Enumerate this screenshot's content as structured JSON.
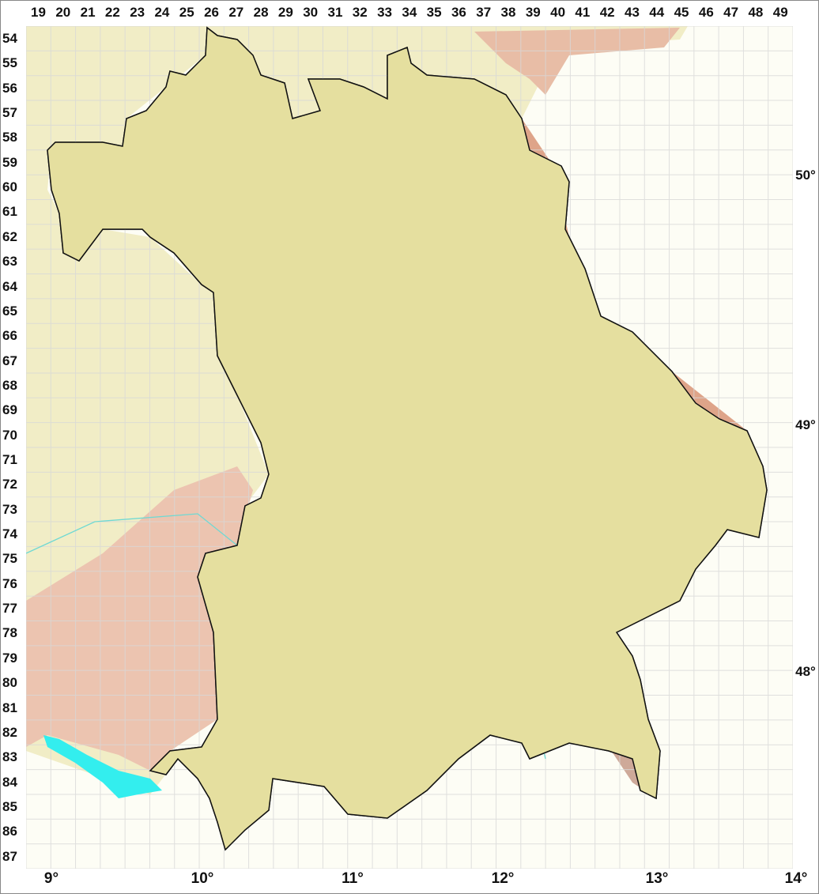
{
  "grid": {
    "columns": [
      "19",
      "20",
      "21",
      "22",
      "23",
      "24",
      "25",
      "26",
      "27",
      "28",
      "29",
      "30",
      "31",
      "32",
      "33",
      "34",
      "35",
      "36",
      "37",
      "38",
      "39",
      "40",
      "41",
      "42",
      "43",
      "44",
      "45",
      "46",
      "47",
      "48",
      "49"
    ],
    "rows": [
      "54",
      "55",
      "56",
      "57",
      "58",
      "59",
      "60",
      "61",
      "62",
      "63",
      "64",
      "65",
      "66",
      "67",
      "68",
      "69",
      "70",
      "71",
      "72",
      "73",
      "74",
      "75",
      "76",
      "77",
      "78",
      "79",
      "80",
      "81",
      "82",
      "83",
      "84",
      "85",
      "86",
      "87"
    ]
  },
  "longitude_labels": [
    "9°",
    "10°",
    "11°",
    "12°",
    "13°",
    "14°"
  ],
  "latitude_labels": [
    "50°",
    "49°",
    "48°"
  ],
  "colors": {
    "background": "#fdfdf5",
    "lowland": "#e9e3b0",
    "upland": "#d9d48e",
    "hills": "#f2eecd",
    "mountain": "#d89a80",
    "outside_pink": "#eecab8",
    "water": "#33eeee",
    "river": "#6fd9d3",
    "border": "#111111"
  }
}
